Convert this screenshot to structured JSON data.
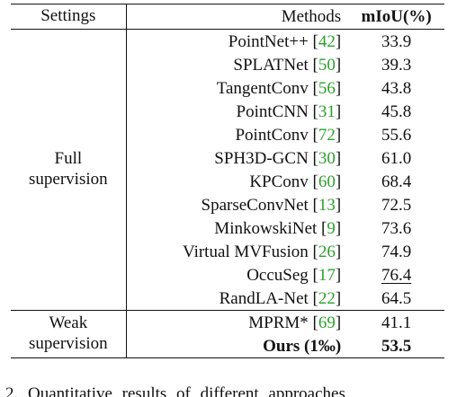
{
  "table": {
    "headers": {
      "settings": "Settings",
      "methods": "Methods",
      "metric": "mIoU(%)"
    },
    "groups": [
      {
        "setting": "Full supervision",
        "setting_lines": [
          "Full",
          "supervision"
        ],
        "rows": [
          {
            "method": "PointNet++",
            "cite": "42",
            "value": "33.9"
          },
          {
            "method": "SPLATNet",
            "cite": "50",
            "value": "39.3"
          },
          {
            "method": "TangentConv",
            "cite": "56",
            "value": "43.8"
          },
          {
            "method": "PointCNN",
            "cite": "31",
            "value": "45.8"
          },
          {
            "method": "PointConv",
            "cite": "72",
            "value": "55.6"
          },
          {
            "method": "SPH3D-GCN",
            "cite": "30",
            "value": "61.0"
          },
          {
            "method": "KPConv",
            "cite": "60",
            "value": "68.4"
          },
          {
            "method": "SparseConvNet",
            "cite": "13",
            "value": "72.5"
          },
          {
            "method": "MinkowskiNet",
            "cite": "9",
            "value": "73.6"
          },
          {
            "method": "Virtual MVFusion",
            "cite": "26",
            "value": "74.9"
          },
          {
            "method": "OccuSeg",
            "cite": "17",
            "value": "76.4",
            "underline": true
          },
          {
            "method": "RandLA-Net",
            "cite": "22",
            "value": "64.5"
          }
        ]
      },
      {
        "setting": "Weak supervision",
        "setting_lines": [
          "Weak",
          "supervision"
        ],
        "rows": [
          {
            "method": "MPRM*",
            "cite": "69",
            "value": "41.1"
          },
          {
            "method": "Ours (1‰)",
            "cite": "",
            "value": "53.5",
            "bold": true
          }
        ]
      }
    ]
  },
  "caption_fragment": "2.   Quantitative   results   of   different   approaches"
}
